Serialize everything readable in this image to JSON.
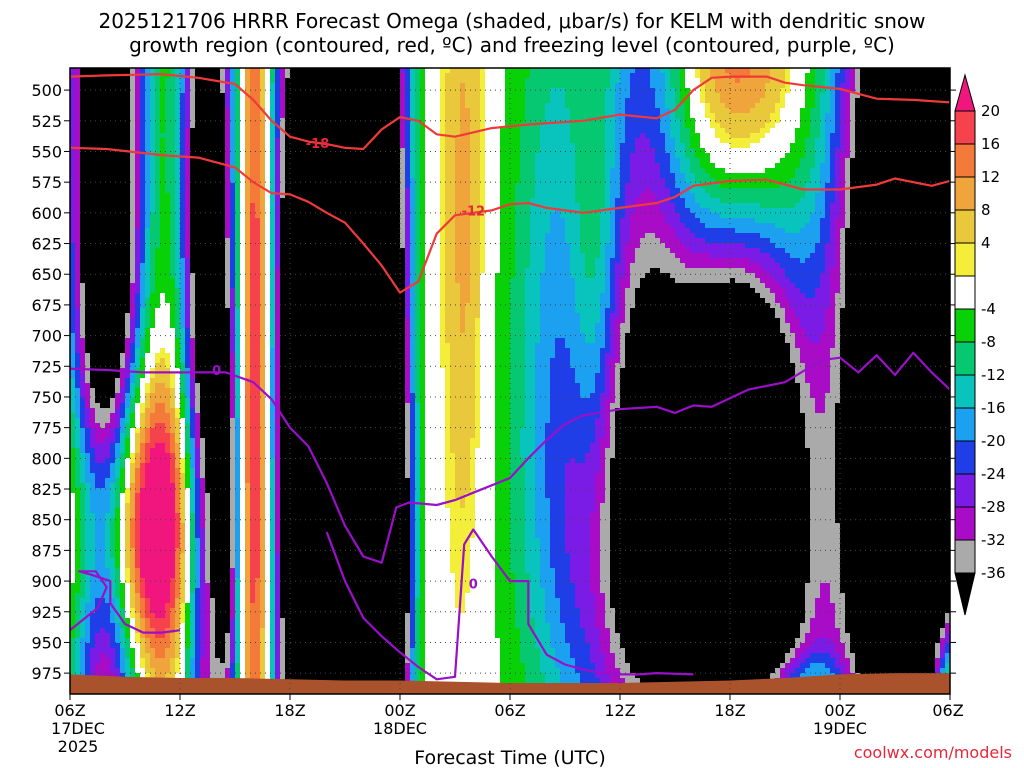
{
  "chart_data": {
    "type": "heatmap",
    "title_lines": [
      "2025121706 HRRR Forecast Omega (shaded, μbar/s) for KELM with dendritic snow",
      "growth region (contoured, red, ºC) and freezing level (contoured, purple, ºC)"
    ],
    "xlabel": "Forecast Time (UTC)",
    "credit": "coolwx.com/models",
    "x_range_hours": [
      0,
      48
    ],
    "y_levels_mb": [
      500,
      525,
      550,
      575,
      600,
      625,
      650,
      675,
      700,
      725,
      750,
      775,
      800,
      825,
      850,
      875,
      900,
      925,
      950,
      975
    ],
    "y_range_mb": [
      482,
      992
    ],
    "x_ticks": [
      {
        "hour": 0,
        "label": "06Z",
        "sub": [
          "17DEC",
          "2025"
        ]
      },
      {
        "hour": 6,
        "label": "12Z",
        "sub": []
      },
      {
        "hour": 12,
        "label": "18Z",
        "sub": []
      },
      {
        "hour": 18,
        "label": "00Z",
        "sub": [
          "18DEC"
        ]
      },
      {
        "hour": 24,
        "label": "06Z",
        "sub": []
      },
      {
        "hour": 30,
        "label": "12Z",
        "sub": []
      },
      {
        "hour": 36,
        "label": "18Z",
        "sub": []
      },
      {
        "hour": 42,
        "label": "00Z",
        "sub": [
          "19DEC"
        ]
      },
      {
        "hour": 48,
        "label": "06Z",
        "sub": []
      }
    ],
    "grid": true,
    "colorbar": {
      "labels": [
        "20",
        "16",
        "12",
        "8",
        "4",
        "-4",
        "-8",
        "-12",
        "-16",
        "-20",
        "-24",
        "-28",
        "-32",
        "-36"
      ],
      "bins": [
        {
          "max": 24,
          "color": "#f0167e"
        },
        {
          "max": 20,
          "color": "#f5424d"
        },
        {
          "max": 16,
          "color": "#f47a3a"
        },
        {
          "max": 12,
          "color": "#f0a43c"
        },
        {
          "max": 8,
          "color": "#e9c83c"
        },
        {
          "max": 4,
          "color": "#f2ee3a"
        },
        {
          "max": -4,
          "color": "#ffffff"
        },
        {
          "max": -8,
          "color": "#08d108"
        },
        {
          "max": -12,
          "color": "#06c870"
        },
        {
          "max": -16,
          "color": "#08c4bc"
        },
        {
          "max": -20,
          "color": "#1ca0f0"
        },
        {
          "max": -24,
          "color": "#1f3ee8"
        },
        {
          "max": -28,
          "color": "#7a1ce6"
        },
        {
          "max": -32,
          "color": "#a80cc6"
        },
        {
          "max": -36,
          "color": "#aaaaaa"
        },
        {
          "max": -99,
          "color": "#000000"
        }
      ]
    },
    "omega_features": [
      {
        "t": 2.0,
        "p": 590,
        "a": -60,
        "st": 1.4,
        "sp": 520
      },
      {
        "t": 7.5,
        "p": 640,
        "a": -52,
        "st": 1.0,
        "sp": 380
      },
      {
        "t": 13.2,
        "p": 760,
        "a": -66,
        "st": 1.9,
        "sp": 340
      },
      {
        "t": 16.8,
        "p": 720,
        "a": -56,
        "st": 1.1,
        "sp": 320
      },
      {
        "t": 17.7,
        "p": 900,
        "a": -38,
        "st": 0.6,
        "sp": 120
      },
      {
        "t": 8.6,
        "p": 850,
        "a": -26,
        "st": 0.5,
        "sp": 110
      },
      {
        "t": 21.5,
        "p": 610,
        "a": 10,
        "st": 0.8,
        "sp": 210
      },
      {
        "t": 16.2,
        "p": 560,
        "a": -20,
        "st": 1.3,
        "sp": 160
      },
      {
        "t": 27.0,
        "p": 600,
        "a": -14,
        "st": 2.2,
        "sp": 180
      },
      {
        "t": 31.5,
        "p": 550,
        "a": -20,
        "st": 1.8,
        "sp": 260
      },
      {
        "t": 30.5,
        "p": 870,
        "a": -34,
        "st": 3.5,
        "sp": 150
      },
      {
        "t": 28.6,
        "p": 680,
        "a": 14,
        "st": 1.0,
        "sp": 160
      },
      {
        "t": 36.5,
        "p": 820,
        "a": -82,
        "st": 2.6,
        "sp": 230
      },
      {
        "t": 45.6,
        "p": 750,
        "a": -78,
        "st": 2.6,
        "sp": 340
      },
      {
        "t": 36.4,
        "p": 530,
        "a": 44,
        "st": 2.5,
        "sp": 150
      },
      {
        "t": 3.5,
        "p": 855,
        "a": 44,
        "st": 2.6,
        "sp": 90
      },
      {
        "t": 10.2,
        "p": 740,
        "a": 38,
        "st": 0.7,
        "sp": 320
      },
      {
        "t": 47.8,
        "p": 985,
        "a": 30,
        "st": 0.7,
        "sp": 40
      },
      {
        "t": 38.0,
        "p": 985,
        "a": 20,
        "st": 3.0,
        "sp": 20
      }
    ],
    "terrain": {
      "color": "#a9522b",
      "top_mb": [
        976,
        978,
        979,
        979,
        980,
        981,
        981,
        982,
        983,
        983,
        983,
        982,
        981,
        979,
        976,
        975,
        975
      ]
    },
    "dgz_contours": [
      {
        "label": "-18",
        "points": [
          [
            0,
            489
          ],
          [
            2,
            488
          ],
          [
            5,
            487
          ],
          [
            7,
            490
          ],
          [
            9,
            495
          ],
          [
            10,
            508
          ],
          [
            11,
            525
          ],
          [
            12,
            538
          ],
          [
            13,
            542
          ],
          [
            14,
            544
          ],
          [
            15,
            547
          ],
          [
            16,
            548
          ],
          [
            17,
            532
          ],
          [
            18,
            522
          ],
          [
            19,
            525
          ],
          [
            20,
            536
          ],
          [
            21,
            538
          ],
          [
            23,
            531
          ],
          [
            25,
            528
          ],
          [
            28,
            525
          ],
          [
            30,
            520
          ],
          [
            32,
            523
          ],
          [
            33,
            516
          ],
          [
            34,
            500
          ],
          [
            35,
            490
          ],
          [
            36,
            489
          ],
          [
            38,
            489
          ],
          [
            39,
            494
          ],
          [
            40,
            496
          ],
          [
            42,
            499
          ],
          [
            44,
            507
          ],
          [
            46,
            508
          ],
          [
            48,
            510
          ]
        ],
        "label_at": [
          13.5,
          543
        ]
      },
      {
        "label": "-12",
        "points": [
          [
            0,
            547
          ],
          [
            2,
            548
          ],
          [
            5,
            553
          ],
          [
            7,
            555
          ],
          [
            9,
            563
          ],
          [
            10,
            575
          ],
          [
            11,
            584
          ],
          [
            12,
            585
          ],
          [
            13,
            591
          ],
          [
            14,
            600
          ],
          [
            15,
            608
          ],
          [
            16,
            625
          ],
          [
            17,
            643
          ],
          [
            18,
            665
          ],
          [
            19,
            656
          ],
          [
            20,
            617
          ],
          [
            21,
            602
          ],
          [
            22,
            600
          ],
          [
            23,
            598
          ],
          [
            24,
            593
          ],
          [
            25,
            592
          ],
          [
            26,
            596
          ],
          [
            28,
            600
          ],
          [
            30,
            596
          ],
          [
            32,
            592
          ],
          [
            33,
            587
          ],
          [
            34,
            578
          ],
          [
            36,
            574
          ],
          [
            38,
            573
          ],
          [
            40,
            581
          ],
          [
            42,
            581
          ],
          [
            44,
            577
          ],
          [
            45,
            572
          ],
          [
            47,
            578
          ],
          [
            48,
            574
          ]
        ],
        "label_at": [
          22,
          598
        ]
      }
    ],
    "freezing_contour": {
      "label": "0",
      "points": [
        [
          0,
          727
        ],
        [
          2,
          728
        ],
        [
          4,
          730
        ],
        [
          6,
          730
        ],
        [
          7.5,
          730
        ],
        [
          8.5,
          730
        ],
        [
          10,
          738
        ],
        [
          11,
          752
        ],
        [
          12,
          775
        ],
        [
          13,
          790
        ],
        [
          14,
          820
        ],
        [
          15,
          855
        ],
        [
          16,
          880
        ],
        [
          17,
          885
        ],
        [
          17.8,
          840
        ],
        [
          18.5,
          836
        ],
        [
          20,
          838
        ],
        [
          21,
          834
        ],
        [
          22,
          828
        ],
        [
          24,
          816
        ],
        [
          25,
          800
        ],
        [
          26,
          785
        ],
        [
          27,
          772
        ],
        [
          28,
          765
        ],
        [
          30,
          760
        ],
        [
          32,
          758
        ],
        [
          33,
          763
        ],
        [
          34,
          757
        ],
        [
          35,
          758
        ],
        [
          37,
          744
        ],
        [
          39,
          738
        ],
        [
          41,
          720
        ],
        [
          42,
          718
        ],
        [
          43,
          730
        ],
        [
          44,
          716
        ],
        [
          45,
          732
        ],
        [
          46,
          714
        ],
        [
          47,
          730
        ],
        [
          48,
          744
        ]
      ],
      "label_at": [
        8.0,
        728
      ]
    },
    "freezing_contour_2": {
      "label": "0",
      "points": [
        [
          0,
          940
        ],
        [
          1.5,
          922
        ],
        [
          2,
          905
        ],
        [
          1.4,
          892
        ],
        [
          0.5,
          892
        ],
        [
          1.2,
          895
        ],
        [
          2.2,
          900
        ],
        [
          2.2,
          918
        ],
        [
          3,
          935
        ],
        [
          4,
          942
        ],
        [
          5,
          942
        ],
        [
          6,
          940
        ]
      ],
      "label_at": null
    },
    "freezing_contour_3": {
      "label": "0",
      "points": [
        [
          14,
          860
        ],
        [
          15,
          900
        ],
        [
          16,
          930
        ],
        [
          17,
          945
        ],
        [
          18,
          958
        ],
        [
          19,
          970
        ],
        [
          20,
          980
        ],
        [
          21,
          978
        ],
        [
          21.5,
          870
        ],
        [
          22,
          858
        ],
        [
          23,
          880
        ],
        [
          24,
          900
        ],
        [
          25,
          900
        ],
        [
          25,
          935
        ],
        [
          26,
          960
        ],
        [
          27,
          968
        ],
        [
          28,
          972
        ],
        [
          29,
          975
        ],
        [
          30,
          976
        ],
        [
          31,
          976
        ],
        [
          32,
          975
        ],
        [
          34,
          976
        ]
      ],
      "label_at": [
        22.0,
        902
      ]
    }
  }
}
